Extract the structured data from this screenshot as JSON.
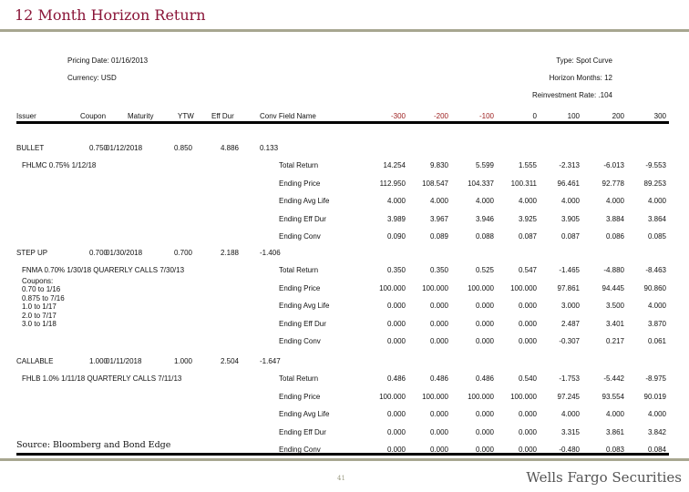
{
  "title": "12 Month Horizon Return",
  "meta": {
    "pricing_date": "Pricing Date: 01/16/2013",
    "currency": "Currency: USD",
    "type": "Type: Spot Curve",
    "horizon_months": "Horizon Months: 12",
    "reinvestment_rate": "Reinvestment Rate: .104"
  },
  "columns": {
    "issuer": "Issuer",
    "coupon": "Coupon",
    "maturity": "Maturity",
    "ytw": "YTW",
    "eff_dur": "Eff Dur",
    "conv": "Conv Field Name",
    "scenarios": [
      "-300",
      "-200",
      "-100",
      "0",
      "100",
      "200",
      "300"
    ]
  },
  "scenario_color_negative": "#9b1b1b",
  "metric_labels": [
    "Total Return",
    "Ending Price",
    "Ending Avg Life",
    "Ending Eff Dur",
    "Ending Conv"
  ],
  "bonds": [
    {
      "issuer": "BULLET",
      "coupon": "0.750",
      "maturity": "01/12/2018",
      "ytw": "0.850",
      "eff_dur": "4.886",
      "conv": "0.133",
      "description": [
        "FHLMC 0.75% 1/12/18"
      ],
      "values": [
        [
          "14.254",
          "9.830",
          "5.599",
          "1.555",
          "-2.313",
          "-6.013",
          "-9.553"
        ],
        [
          "112.950",
          "108.547",
          "104.337",
          "100.311",
          "96.461",
          "92.778",
          "89.253"
        ],
        [
          "4.000",
          "4.000",
          "4.000",
          "4.000",
          "4.000",
          "4.000",
          "4.000"
        ],
        [
          "3.989",
          "3.967",
          "3.946",
          "3.925",
          "3.905",
          "3.884",
          "3.864"
        ],
        [
          "0.090",
          "0.089",
          "0.088",
          "0.087",
          "0.087",
          "0.086",
          "0.085"
        ]
      ]
    },
    {
      "issuer": "STEP UP",
      "coupon": "0.700",
      "maturity": "01/30/2018",
      "ytw": "0.700",
      "eff_dur": "2.188",
      "conv": "-1.406",
      "description": [
        "FNMA 0.70% 1/30/18 QUARERLY CALLS  7/30/13",
        "Coupons:",
        "0.70 to 1/16",
        "0.875 to 7/16",
        "1.0 to 1/17",
        "2.0 to 7/17",
        "3.0 to 1/18"
      ],
      "values": [
        [
          "0.350",
          "0.350",
          "0.525",
          "0.547",
          "-1.465",
          "-4.880",
          "-8.463"
        ],
        [
          "100.000",
          "100.000",
          "100.000",
          "100.000",
          "97.861",
          "94.445",
          "90.860"
        ],
        [
          "0.000",
          "0.000",
          "0.000",
          "0.000",
          "3.000",
          "3.500",
          "4.000"
        ],
        [
          "0.000",
          "0.000",
          "0.000",
          "0.000",
          "2.487",
          "3.401",
          "3.870"
        ],
        [
          "0.000",
          "0.000",
          "0.000",
          "0.000",
          "-0.307",
          "0.217",
          "0.061"
        ]
      ]
    },
    {
      "issuer": "CALLABLE",
      "coupon": "1.000",
      "maturity": "01/11/2018",
      "ytw": "1.000",
      "eff_dur": "2.504",
      "conv": "-1.647",
      "description": [
        "FHLB 1.0% 1/11/18 QUARTERLY CALLS 7/11/13"
      ],
      "values": [
        [
          "0.486",
          "0.486",
          "0.486",
          "0.540",
          "-1.753",
          "-5.442",
          "-8.975"
        ],
        [
          "100.000",
          "100.000",
          "100.000",
          "100.000",
          "97.245",
          "93.554",
          "90.019"
        ],
        [
          "0.000",
          "0.000",
          "0.000",
          "0.000",
          "4.000",
          "4.000",
          "4.000"
        ],
        [
          "0.000",
          "0.000",
          "0.000",
          "0.000",
          "3.315",
          "3.861",
          "3.842"
        ],
        [
          "0.000",
          "0.000",
          "0.000",
          "0.000",
          "-0.480",
          "0.083",
          "0.084"
        ]
      ]
    }
  ],
  "source": "Source: Bloomberg and Bond Edge",
  "page_number": "41",
  "brand": "Wells Fargo Securities"
}
